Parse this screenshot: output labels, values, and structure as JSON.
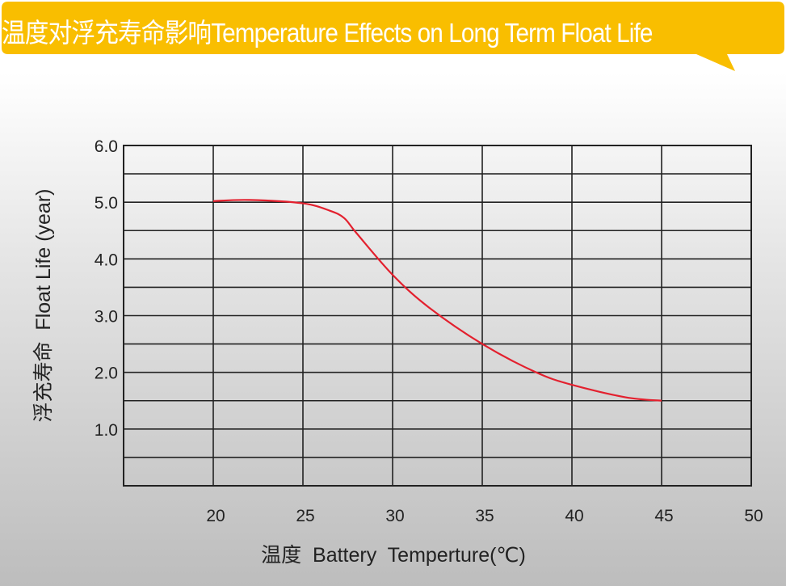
{
  "colors": {
    "banner": "#F9BE00",
    "curve": "#E3202E",
    "grid": "#222222"
  },
  "banner": {
    "title": "温度对浮充寿命影响Temperature Effects on Long Term Float Life"
  },
  "chart_data": {
    "type": "line",
    "title": "温度对浮充寿命影响Temperature Effects on Long Term Float Life",
    "xlabel": "温度  Battery  Temperture(℃)",
    "ylabel": "浮充寿命  Float Life (year)",
    "xlim": [
      15,
      50
    ],
    "ylim": [
      0,
      6
    ],
    "xticks": [
      "20",
      "25",
      "30",
      "35",
      "40",
      "45",
      "50"
    ],
    "yticks": [
      "1.0",
      "2.0",
      "3.0",
      "4.0",
      "5.0",
      "6.0"
    ],
    "grid": true,
    "series": [
      {
        "x": [
          20,
          22,
          25,
          26.5,
          27.3,
          28,
          30,
          32,
          35,
          38,
          40,
          43,
          45
        ],
        "y": [
          5.02,
          5.04,
          4.98,
          4.85,
          4.72,
          4.45,
          3.72,
          3.15,
          2.5,
          2.0,
          1.78,
          1.56,
          1.5
        ]
      }
    ]
  }
}
